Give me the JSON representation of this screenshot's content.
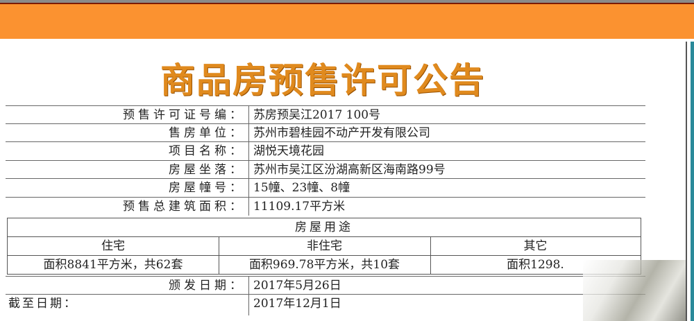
{
  "title": "商品房预售许可公告",
  "fields": [
    {
      "label": "预售许可证号编：",
      "value": "苏房预吴江2017 100号"
    },
    {
      "label": "售房单位：",
      "value": "苏州市碧桂园不动产开发有限公司"
    },
    {
      "label": "项目名称：",
      "value": "湖悦天境花园"
    },
    {
      "label": "房屋坐落：",
      "value": "苏州市吴江区汾湖高新区海南路99号"
    },
    {
      "label": "房屋幢号：",
      "value": "15幢、23幢、8幢"
    },
    {
      "label": "预售总建筑面积：",
      "value": "11109.17平方米"
    }
  ],
  "usage": {
    "header": "房屋用途",
    "columns": [
      "住宅",
      "非住宅",
      "其它"
    ],
    "values": [
      "面积8841平方米，共62套",
      "面积969.78平方米，共10套",
      "面积1298."
    ]
  },
  "issue_date": {
    "label": "颁发日期：",
    "value": "2017年5月26日"
  },
  "expiry_date": {
    "label": "截至日期：",
    "value": "2017年12月1日"
  },
  "colors": {
    "band": "#fb9230",
    "title": "#e08a1e"
  }
}
